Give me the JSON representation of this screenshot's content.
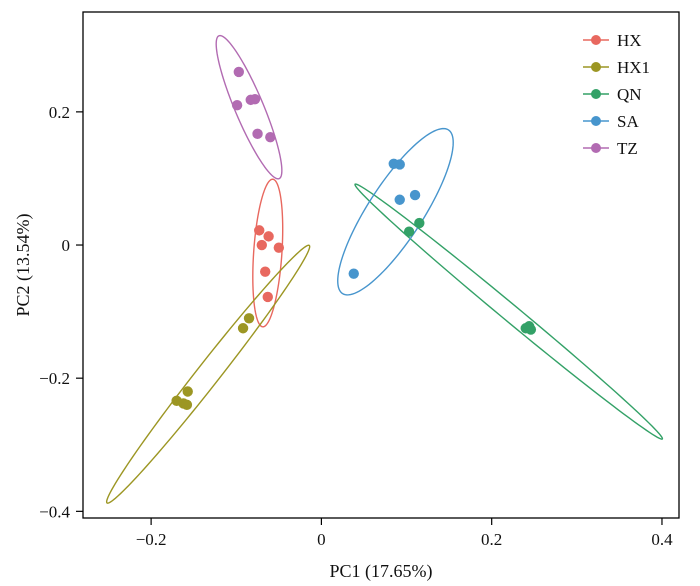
{
  "chart_data": {
    "type": "scatter",
    "title": "",
    "xlabel": "PC1 (17.65%)",
    "ylabel": "PC2 (13.54%)",
    "xlim": [
      -0.28,
      0.42
    ],
    "ylim": [
      -0.41,
      0.35
    ],
    "x_ticks": [
      -0.2,
      0,
      0.2,
      0.4
    ],
    "x_tick_labels": [
      "−0.2",
      "0",
      "0.2",
      "0.4"
    ],
    "y_ticks": [
      -0.4,
      -0.2,
      0,
      0.2
    ],
    "y_tick_labels": [
      "−0.4",
      "−0.2",
      "0",
      "0.2"
    ],
    "grid": false,
    "legend_position": "top-right",
    "series": [
      {
        "name": "HX",
        "color": "#e8685f",
        "points": [
          [
            -0.073,
            0.022
          ],
          [
            -0.07,
            0.0
          ],
          [
            -0.062,
            0.013
          ],
          [
            -0.05,
            -0.004
          ],
          [
            -0.066,
            -0.04
          ],
          [
            -0.063,
            -0.078
          ]
        ],
        "ellipse": {
          "center": [
            -0.063,
            -0.012
          ],
          "semi_major": 0.111,
          "semi_minor": 0.0166,
          "angle_deg": 87.0
        }
      },
      {
        "name": "HX1",
        "color": "#9c9623",
        "points": [
          [
            -0.085,
            -0.11
          ],
          [
            -0.092,
            -0.125
          ],
          [
            -0.157,
            -0.22
          ],
          [
            -0.162,
            -0.238
          ],
          [
            -0.17,
            -0.234
          ],
          [
            -0.158,
            -0.24
          ]
        ],
        "ellipse": {
          "center": [
            -0.133,
            -0.194
          ],
          "semi_major": 0.227,
          "semi_minor": 0.0144,
          "angle_deg": 58.5
        }
      },
      {
        "name": "QN",
        "color": "#33a167",
        "points": [
          [
            0.115,
            0.033
          ],
          [
            0.103,
            0.02
          ],
          [
            0.24,
            -0.125
          ],
          [
            0.244,
            -0.122
          ],
          [
            0.246,
            -0.127
          ]
        ],
        "ellipse": {
          "center": [
            0.22,
            -0.1
          ],
          "semi_major": 0.263,
          "semi_minor": 0.0113,
          "angle_deg": -46.7
        }
      },
      {
        "name": "SA",
        "color": "#4795cd",
        "points": [
          [
            0.085,
            0.122
          ],
          [
            0.092,
            0.121
          ],
          [
            0.11,
            0.075
          ],
          [
            0.092,
            0.068
          ],
          [
            0.038,
            -0.043
          ]
        ],
        "ellipse": {
          "center": [
            0.087,
            0.05
          ],
          "semi_major": 0.138,
          "semi_minor": 0.0341,
          "angle_deg": 64.0
        }
      },
      {
        "name": "TZ",
        "color": "#b26bb2",
        "points": [
          [
            -0.097,
            0.26
          ],
          [
            -0.083,
            0.218
          ],
          [
            -0.078,
            0.219
          ],
          [
            -0.099,
            0.21
          ],
          [
            -0.075,
            0.167
          ],
          [
            -0.06,
            0.162
          ]
        ],
        "ellipse": {
          "center": [
            -0.085,
            0.207
          ],
          "semi_major": 0.113,
          "semi_minor": 0.0172,
          "angle_deg": -72.0
        }
      }
    ]
  }
}
